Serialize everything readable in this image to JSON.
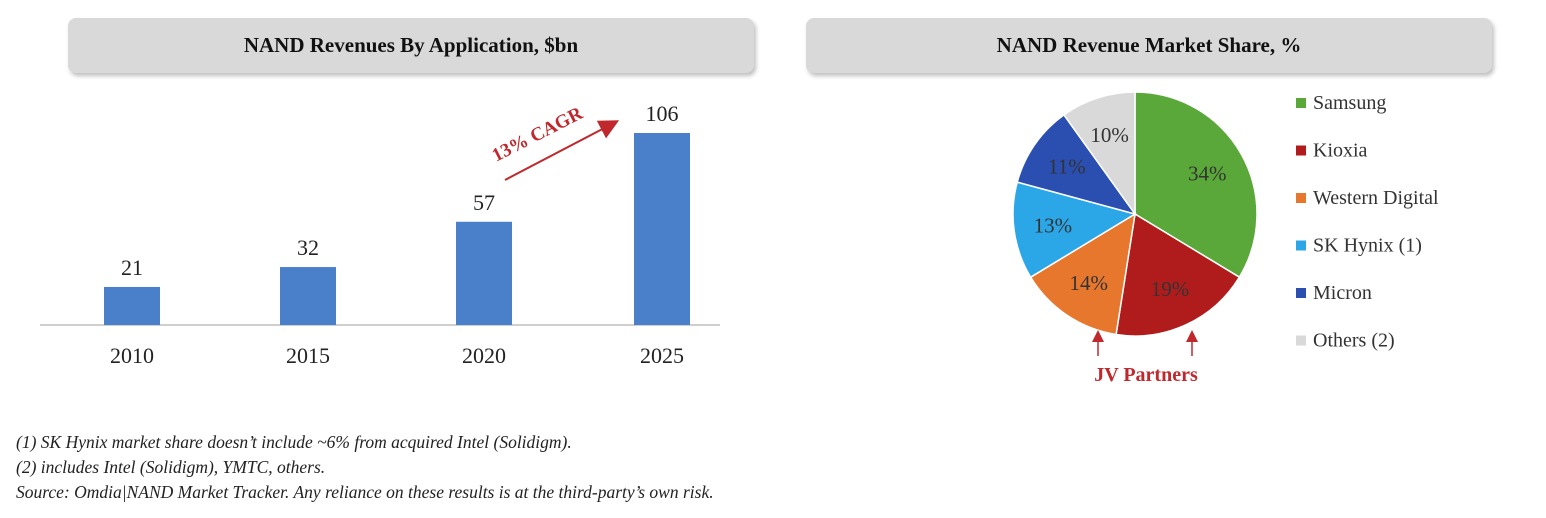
{
  "chart_data": [
    {
      "type": "bar",
      "title": "NAND Revenues By Application, $bn",
      "categories": [
        "2010",
        "2015",
        "2020",
        "2025"
      ],
      "values": [
        21,
        32,
        57,
        106
      ],
      "data_labels": [
        "21",
        "32",
        "57",
        "106"
      ],
      "ylim": [
        0,
        106
      ],
      "grid": false,
      "color": "#4a7fca",
      "annotation": "13% CAGR",
      "annotation_color": "#c0282d"
    },
    {
      "type": "pie",
      "title": "NAND Revenue Market Share, %",
      "slices": [
        {
          "label": "Samsung",
          "value": 34,
          "text": "34%",
          "color": "#5aa839"
        },
        {
          "label": "Kioxia",
          "value": 19,
          "text": "19%",
          "color": "#b01c1c"
        },
        {
          "label": "Western Digital",
          "value": 14,
          "text": "14%",
          "color": "#e8772e"
        },
        {
          "label": "SK Hynix (1)",
          "value": 13,
          "text": "13%",
          "color": "#2ba7e8"
        },
        {
          "label": "Micron",
          "value": 11,
          "text": "11%",
          "color": "#2a4fb0"
        },
        {
          "label": "Others (2)",
          "value": 10,
          "text": "10%",
          "color": "#d9d9d9"
        }
      ],
      "legend_position": "right",
      "annotation": "JV Partners",
      "annotation_color": "#c0282d"
    }
  ],
  "footnotes": [
    "(1) SK Hynix market share doesn’t include ~6% from acquired Intel (Solidigm).",
    "(2) includes Intel (Solidigm), YMTC, others.",
    "Source: Omdia|NAND Market Tracker. Any reliance on these results is at the third-party’s own risk."
  ]
}
